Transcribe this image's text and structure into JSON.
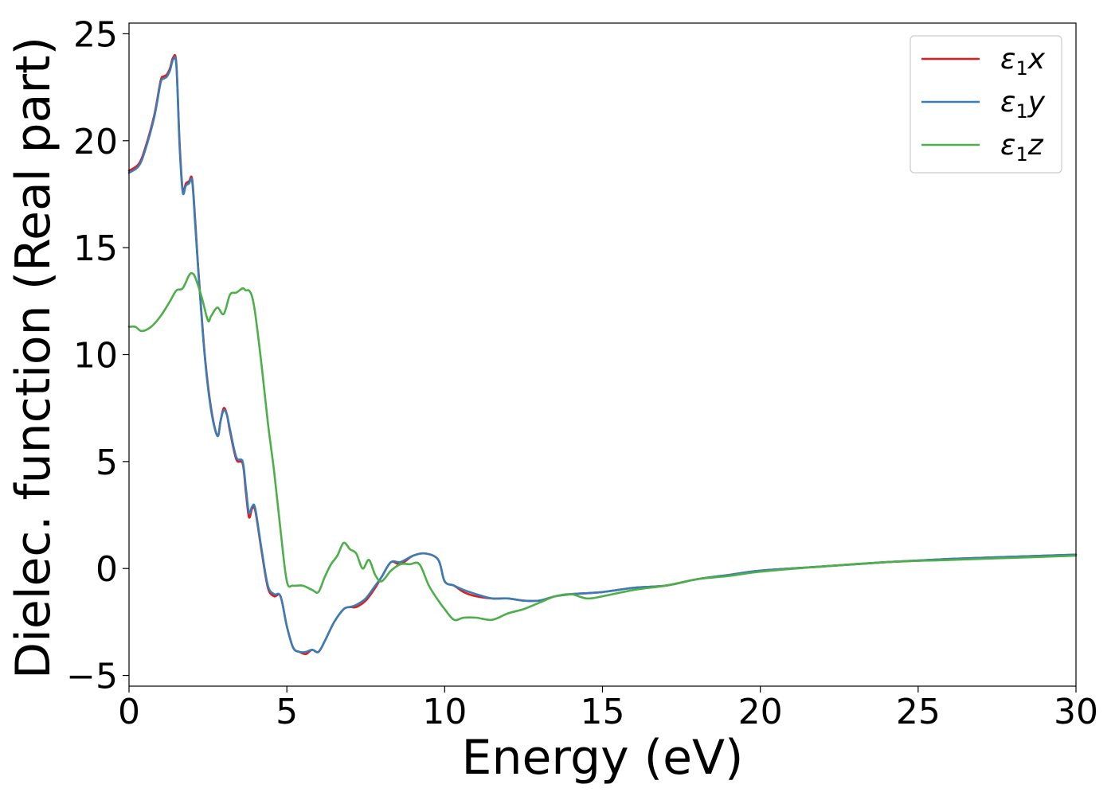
{
  "chart_data": {
    "type": "line",
    "title": "",
    "xlabel": "Energy (eV)",
    "ylabel": "Dielec. function (Real part)",
    "xlim": [
      0,
      30
    ],
    "ylim": [
      -5.5,
      25.5
    ],
    "xticks": [
      0,
      5,
      10,
      15,
      20,
      25,
      30
    ],
    "xtick_labels": [
      "0",
      "5",
      "10",
      "15",
      "20",
      "25",
      "30"
    ],
    "yticks": [
      -5,
      0,
      5,
      10,
      15,
      20,
      25
    ],
    "ytick_labels": [
      "−5",
      "0",
      "5",
      "10",
      "15",
      "20",
      "25"
    ],
    "grid": false,
    "legend_position": "top-right",
    "series": [
      {
        "name": "ε₁x",
        "legend_main": "ε",
        "legend_sub": "1",
        "legend_suffix": "x",
        "color": "#e41a1c",
        "x": [
          0,
          0.3,
          0.5,
          0.8,
          1.0,
          1.1,
          1.2,
          1.3,
          1.4,
          1.5,
          1.6,
          1.7,
          1.8,
          1.9,
          2.0,
          2.1,
          2.2,
          2.4,
          2.6,
          2.8,
          2.9,
          3.0,
          3.1,
          3.2,
          3.4,
          3.6,
          3.7,
          3.8,
          3.9,
          4.0,
          4.2,
          4.4,
          4.6,
          4.8,
          5.0,
          5.2,
          5.4,
          5.6,
          5.8,
          6.0,
          6.2,
          6.5,
          6.8,
          7.0,
          7.2,
          7.5,
          7.8,
          8.0,
          8.3,
          8.6,
          9.0,
          9.4,
          9.8,
          10.0,
          10.3,
          10.6,
          11.0,
          11.5,
          12.0,
          12.5,
          13.0,
          13.5,
          14.0,
          15.0,
          16.0,
          17.0,
          18.0,
          19.0,
          20.0,
          22.0,
          24.0,
          26.0,
          28.0,
          30.0
        ],
        "values": [
          18.6,
          18.9,
          19.6,
          21.2,
          22.8,
          23.0,
          23.1,
          23.4,
          23.9,
          23.6,
          20.0,
          17.7,
          18.0,
          18.1,
          18.2,
          16.2,
          13.9,
          10.0,
          7.5,
          6.2,
          6.9,
          7.5,
          7.2,
          6.4,
          5.1,
          4.9,
          3.6,
          2.4,
          2.8,
          2.7,
          0.8,
          -0.9,
          -1.3,
          -1.3,
          -2.7,
          -3.7,
          -3.9,
          -4.0,
          -3.8,
          -3.9,
          -3.4,
          -2.5,
          -1.9,
          -1.8,
          -1.8,
          -1.5,
          -0.9,
          -0.4,
          0.3,
          0.2,
          0.6,
          0.7,
          0.4,
          -0.6,
          -0.8,
          -1.1,
          -1.3,
          -1.4,
          -1.4,
          -1.5,
          -1.5,
          -1.3,
          -1.2,
          -1.1,
          -0.9,
          -0.8,
          -0.5,
          -0.3,
          -0.1,
          0.1,
          0.3,
          0.45,
          0.55,
          0.65
        ]
      },
      {
        "name": "ε₁y",
        "legend_main": "ε",
        "legend_sub": "1",
        "legend_suffix": "y",
        "color": "#377eb8",
        "x": [
          0,
          0.3,
          0.5,
          0.8,
          1.0,
          1.1,
          1.2,
          1.3,
          1.4,
          1.5,
          1.6,
          1.7,
          1.8,
          1.9,
          2.0,
          2.1,
          2.2,
          2.4,
          2.6,
          2.8,
          2.9,
          3.0,
          3.1,
          3.2,
          3.4,
          3.6,
          3.7,
          3.8,
          3.9,
          4.0,
          4.2,
          4.4,
          4.6,
          4.8,
          5.0,
          5.2,
          5.4,
          5.6,
          5.8,
          6.0,
          6.2,
          6.5,
          6.8,
          7.0,
          7.2,
          7.5,
          7.8,
          8.0,
          8.3,
          8.6,
          9.0,
          9.4,
          9.8,
          10.0,
          10.3,
          10.6,
          11.0,
          11.5,
          12.0,
          12.5,
          13.0,
          13.5,
          14.0,
          15.0,
          16.0,
          17.0,
          18.0,
          19.0,
          20.0,
          22.0,
          24.0,
          26.0,
          28.0,
          30.0
        ],
        "values": [
          18.5,
          18.8,
          19.5,
          21.1,
          22.7,
          22.9,
          23.0,
          23.3,
          23.8,
          23.5,
          19.8,
          17.6,
          17.9,
          18.0,
          18.1,
          16.0,
          13.8,
          9.9,
          7.4,
          6.2,
          6.9,
          7.4,
          7.2,
          6.5,
          5.2,
          5.0,
          3.8,
          2.6,
          2.9,
          2.8,
          0.9,
          -0.8,
          -1.2,
          -1.3,
          -2.7,
          -3.7,
          -3.9,
          -3.9,
          -3.8,
          -3.9,
          -3.4,
          -2.5,
          -1.9,
          -1.8,
          -1.7,
          -1.4,
          -0.8,
          -0.4,
          0.3,
          0.3,
          0.6,
          0.7,
          0.4,
          -0.6,
          -0.8,
          -1.0,
          -1.2,
          -1.4,
          -1.4,
          -1.5,
          -1.5,
          -1.3,
          -1.2,
          -1.1,
          -0.9,
          -0.8,
          -0.5,
          -0.3,
          -0.1,
          0.1,
          0.3,
          0.45,
          0.55,
          0.65
        ]
      },
      {
        "name": "ε₁z",
        "legend_main": "ε",
        "legend_sub": "1",
        "legend_suffix": "z",
        "color": "#4daf4a",
        "x": [
          0,
          0.2,
          0.4,
          0.7,
          1.0,
          1.3,
          1.5,
          1.7,
          1.9,
          2.0,
          2.1,
          2.3,
          2.5,
          2.6,
          2.8,
          3.0,
          3.2,
          3.4,
          3.6,
          3.7,
          3.8,
          3.9,
          4.0,
          4.2,
          4.4,
          4.6,
          4.8,
          5.0,
          5.2,
          5.5,
          5.8,
          6.0,
          6.2,
          6.4,
          6.6,
          6.8,
          7.0,
          7.2,
          7.4,
          7.6,
          7.8,
          8.0,
          8.3,
          8.6,
          8.9,
          9.2,
          9.5,
          9.8,
          10.0,
          10.3,
          10.6,
          11.0,
          11.5,
          12.0,
          12.5,
          13.0,
          13.5,
          14.0,
          14.5,
          15.0,
          16.0,
          17.0,
          18.0,
          19.0,
          20.0,
          22.0,
          24.0,
          26.0,
          28.0,
          30.0
        ],
        "values": [
          11.3,
          11.3,
          11.1,
          11.3,
          11.8,
          12.5,
          13.0,
          13.1,
          13.7,
          13.8,
          13.6,
          12.7,
          11.6,
          11.8,
          12.2,
          11.9,
          12.8,
          12.9,
          13.1,
          13.0,
          13.0,
          12.7,
          11.9,
          9.5,
          6.8,
          4.5,
          1.8,
          -0.6,
          -0.8,
          -0.8,
          -1.0,
          -1.1,
          -0.4,
          0.2,
          0.6,
          1.2,
          0.9,
          0.7,
          0.0,
          0.4,
          -0.3,
          -0.6,
          -0.1,
          0.2,
          0.2,
          0.2,
          -0.8,
          -1.5,
          -1.9,
          -2.4,
          -2.3,
          -2.3,
          -2.4,
          -2.1,
          -1.9,
          -1.6,
          -1.3,
          -1.2,
          -1.4,
          -1.3,
          -1.0,
          -0.8,
          -0.5,
          -0.35,
          -0.15,
          0.1,
          0.3,
          0.4,
          0.5,
          0.6
        ]
      }
    ]
  }
}
